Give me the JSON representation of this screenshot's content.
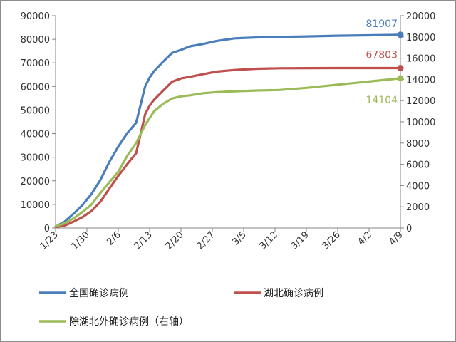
{
  "chart_data": {
    "type": "line",
    "title": "",
    "xlabel": "",
    "ylabel": "",
    "x_ticks": [
      "1/23",
      "1/30",
      "2/6",
      "2/13",
      "2/20",
      "2/27",
      "3/5",
      "3/12",
      "3/19",
      "3/26",
      "4/2",
      "4/9"
    ],
    "y_left": {
      "min": 0,
      "max": 90000,
      "ticks": [
        "0",
        "10000",
        "20000",
        "30000",
        "40000",
        "50000",
        "60000",
        "70000",
        "80000",
        "90000"
      ]
    },
    "y_right": {
      "min": 0,
      "max": 20000,
      "ticks": [
        "0",
        "2000",
        "4000",
        "6000",
        "8000",
        "10000",
        "12000",
        "14000",
        "16000",
        "18000",
        "20000"
      ]
    },
    "grid": false,
    "legend_position": "bottom",
    "series": [
      {
        "name": "全国确诊病例",
        "axis": "left",
        "color": "#4A7EBB",
        "end_label": "81907",
        "x": [
          0,
          2,
          4,
          6,
          8,
          10,
          12,
          14,
          16,
          18,
          20,
          21,
          22,
          24,
          26,
          28,
          30,
          33,
          36,
          40,
          45,
          50,
          56,
          63,
          70,
          77
        ],
        "y": [
          600,
          2700,
          6000,
          9700,
          14400,
          20400,
          28000,
          34500,
          40200,
          44600,
          60000,
          63800,
          66500,
          70500,
          74200,
          75500,
          77000,
          78000,
          79300,
          80400,
          80800,
          81000,
          81200,
          81500,
          81700,
          81907
        ]
      },
      {
        "name": "湖北确诊病例",
        "axis": "left",
        "color": "#C0504D",
        "end_label": "67803",
        "x": [
          0,
          2,
          4,
          6,
          8,
          10,
          12,
          14,
          16,
          18,
          20,
          21,
          22,
          24,
          26,
          28,
          30,
          33,
          36,
          40,
          45,
          50,
          56,
          63,
          70,
          77
        ],
        "y": [
          440,
          1000,
          2700,
          4600,
          7200,
          11100,
          16700,
          22100,
          27100,
          31700,
          48200,
          51900,
          54400,
          58200,
          62000,
          63400,
          64100,
          65200,
          66300,
          67000,
          67500,
          67700,
          67760,
          67800,
          67803,
          67803
        ]
      },
      {
        "name": "除湖北外确诊病例（右轴）",
        "axis": "right",
        "color": "#9BBB59",
        "end_label": "14104",
        "x": [
          0,
          2,
          4,
          6,
          8,
          10,
          12,
          14,
          16,
          18,
          20,
          22,
          24,
          26,
          28,
          30,
          33,
          36,
          40,
          45,
          50,
          56,
          63,
          70,
          77
        ],
        "y": [
          150,
          450,
          900,
          1500,
          2200,
          3300,
          4300,
          5300,
          6800,
          8000,
          9700,
          11000,
          11700,
          12200,
          12400,
          12500,
          12700,
          12800,
          12880,
          12950,
          13000,
          13200,
          13500,
          13800,
          14104
        ]
      }
    ]
  }
}
